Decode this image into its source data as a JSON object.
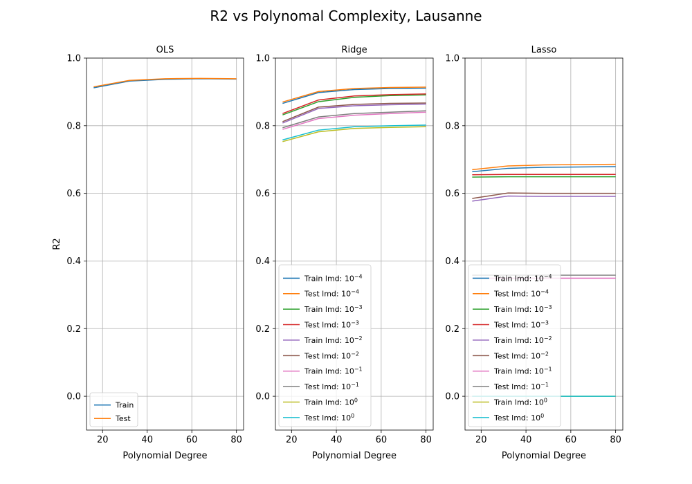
{
  "figure": {
    "suptitle": "R2 vs Polynomal Complexity, Lausanne"
  },
  "chart_data": [
    {
      "type": "line",
      "title": "OLS",
      "xlabel": "Polynomial Degree",
      "ylabel": "R2",
      "xlim": [
        12.8,
        83.2
      ],
      "ylim": [
        -0.1,
        1.0
      ],
      "xticks": [
        20,
        40,
        60,
        80
      ],
      "yticks": [
        0.0,
        0.2,
        0.4,
        0.6,
        0.8,
        1.0
      ],
      "xtick_labels": [
        "20",
        "40",
        "60",
        "80"
      ],
      "ytick_labels": [
        "0.0",
        "0.2",
        "0.4",
        "0.6",
        "0.8",
        "1.0"
      ],
      "grid": true,
      "legend_position": "lower-left",
      "x": [
        16,
        32,
        48,
        64,
        80
      ],
      "series": [
        {
          "name": "Train",
          "color": "#1f77b4",
          "values": [
            0.912,
            0.932,
            0.937,
            0.939,
            0.938
          ]
        },
        {
          "name": "Test",
          "color": "#ff7f0e",
          "values": [
            0.915,
            0.934,
            0.939,
            0.94,
            0.939
          ]
        }
      ]
    },
    {
      "type": "line",
      "title": "Ridge",
      "xlabel": "Polynomial Degree",
      "ylabel": "",
      "xlim": [
        12.8,
        83.2
      ],
      "ylim": [
        -0.1,
        1.0
      ],
      "xticks": [
        20,
        40,
        60,
        80
      ],
      "yticks": [
        0.0,
        0.2,
        0.4,
        0.6,
        0.8,
        1.0
      ],
      "xtick_labels": [
        "20",
        "40",
        "60",
        "80"
      ],
      "ytick_labels": [
        "0.0",
        "0.2",
        "0.4",
        "0.6",
        "0.8",
        "1.0"
      ],
      "grid": true,
      "legend_position": "lower-left",
      "x": [
        16,
        32,
        48,
        64,
        80
      ],
      "series": [
        {
          "name": "Train lmd: 10",
          "exp": "−4",
          "color": "#1f77b4",
          "values": [
            0.866,
            0.898,
            0.907,
            0.91,
            0.911
          ]
        },
        {
          "name": "Test lmd: 10",
          "exp": "−4",
          "color": "#ff7f0e",
          "values": [
            0.87,
            0.901,
            0.91,
            0.913,
            0.914
          ]
        },
        {
          "name": "Train lmd: 10",
          "exp": "−3",
          "color": "#2ca02c",
          "values": [
            0.832,
            0.871,
            0.884,
            0.889,
            0.891
          ]
        },
        {
          "name": "Test lmd: 10",
          "exp": "−3",
          "color": "#d62728",
          "values": [
            0.836,
            0.876,
            0.888,
            0.892,
            0.894
          ]
        },
        {
          "name": "Train lmd: 10",
          "exp": "−2",
          "color": "#9467bd",
          "values": [
            0.808,
            0.851,
            0.859,
            0.862,
            0.864
          ]
        },
        {
          "name": "Test lmd: 10",
          "exp": "−2",
          "color": "#8c564b",
          "values": [
            0.812,
            0.855,
            0.863,
            0.866,
            0.867
          ]
        },
        {
          "name": "Train lmd: 10",
          "exp": "−1",
          "color": "#e377c2",
          "values": [
            0.789,
            0.821,
            0.831,
            0.836,
            0.84
          ]
        },
        {
          "name": "Test lmd: 10",
          "exp": "−1",
          "color": "#7f7f7f",
          "values": [
            0.794,
            0.826,
            0.836,
            0.84,
            0.844
          ]
        },
        {
          "name": "Train lmd: 10",
          "exp": "0",
          "color": "#bcbd22",
          "values": [
            0.753,
            0.782,
            0.792,
            0.795,
            0.797
          ]
        },
        {
          "name": "Test lmd: 10",
          "exp": "0",
          "color": "#17becf",
          "values": [
            0.758,
            0.787,
            0.797,
            0.8,
            0.802
          ]
        }
      ]
    },
    {
      "type": "line",
      "title": "Lasso",
      "xlabel": "Polynomial Degree",
      "ylabel": "",
      "xlim": [
        12.8,
        83.2
      ],
      "ylim": [
        -0.1,
        1.0
      ],
      "xticks": [
        20,
        40,
        60,
        80
      ],
      "yticks": [
        0.0,
        0.2,
        0.4,
        0.6,
        0.8,
        1.0
      ],
      "xtick_labels": [
        "20",
        "40",
        "60",
        "80"
      ],
      "ytick_labels": [
        "0.0",
        "0.2",
        "0.4",
        "0.6",
        "0.8",
        "1.0"
      ],
      "grid": true,
      "legend_position": "lower-left",
      "x": [
        16,
        32,
        48,
        64,
        80
      ],
      "series": [
        {
          "name": "Train lmd: 10",
          "exp": "−4",
          "color": "#1f77b4",
          "values": [
            0.664,
            0.674,
            0.677,
            0.678,
            0.679
          ]
        },
        {
          "name": "Test lmd: 10",
          "exp": "−4",
          "color": "#ff7f0e",
          "values": [
            0.67,
            0.681,
            0.684,
            0.685,
            0.686
          ]
        },
        {
          "name": "Train lmd: 10",
          "exp": "−3",
          "color": "#2ca02c",
          "values": [
            0.648,
            0.649,
            0.649,
            0.649,
            0.649
          ]
        },
        {
          "name": "Test lmd: 10",
          "exp": "−3",
          "color": "#d62728",
          "values": [
            0.655,
            0.656,
            0.656,
            0.656,
            0.656
          ]
        },
        {
          "name": "Train lmd: 10",
          "exp": "−2",
          "color": "#9467bd",
          "values": [
            0.577,
            0.592,
            0.591,
            0.591,
            0.591
          ]
        },
        {
          "name": "Test lmd: 10",
          "exp": "−2",
          "color": "#8c564b",
          "values": [
            0.585,
            0.601,
            0.6,
            0.6,
            0.6
          ]
        },
        {
          "name": "Train lmd: 10",
          "exp": "−1",
          "color": "#e377c2",
          "values": [
            0.349,
            0.349,
            0.349,
            0.349,
            0.349
          ]
        },
        {
          "name": "Test lmd: 10",
          "exp": "−1",
          "color": "#7f7f7f",
          "values": [
            0.358,
            0.358,
            0.358,
            0.358,
            0.358
          ]
        },
        {
          "name": "Train lmd: 10",
          "exp": "0",
          "color": "#bcbd22",
          "values": [
            0.0,
            0.0,
            0.0,
            0.0,
            0.0
          ]
        },
        {
          "name": "Test lmd: 10",
          "exp": "0",
          "color": "#17becf",
          "values": [
            0.0,
            0.0,
            0.0,
            0.0,
            0.0
          ]
        }
      ]
    }
  ]
}
